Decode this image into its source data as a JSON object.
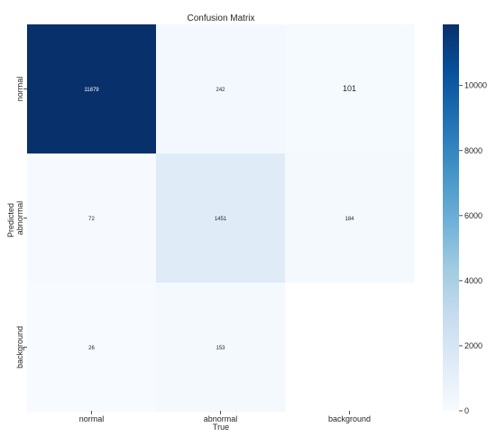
{
  "chart_data": {
    "type": "heatmap",
    "title": "Confusion Matrix",
    "xlabel": "True",
    "ylabel": "Predicted",
    "x_categories": [
      "normal",
      "abnormal",
      "background"
    ],
    "y_categories": [
      "normal",
      "abnormal",
      "background"
    ],
    "values": [
      [
        11879,
        242,
        101
      ],
      [
        72,
        1451,
        184
      ],
      [
        26,
        153,
        null
      ]
    ],
    "value_labels": [
      [
        "11879",
        "242",
        "101"
      ],
      [
        "72",
        "1451",
        "184"
      ],
      [
        "26",
        "153",
        ""
      ]
    ],
    "colorbar": {
      "ticks": [
        0,
        2000,
        4000,
        6000,
        8000,
        10000
      ],
      "tick_labels": [
        "0",
        "2000",
        "4000",
        "6000",
        "8000",
        "10000"
      ],
      "range": [
        0,
        11879
      ],
      "colormap": "Blues",
      "low_color": "#f7fbff",
      "high_color": "#08306b"
    }
  }
}
